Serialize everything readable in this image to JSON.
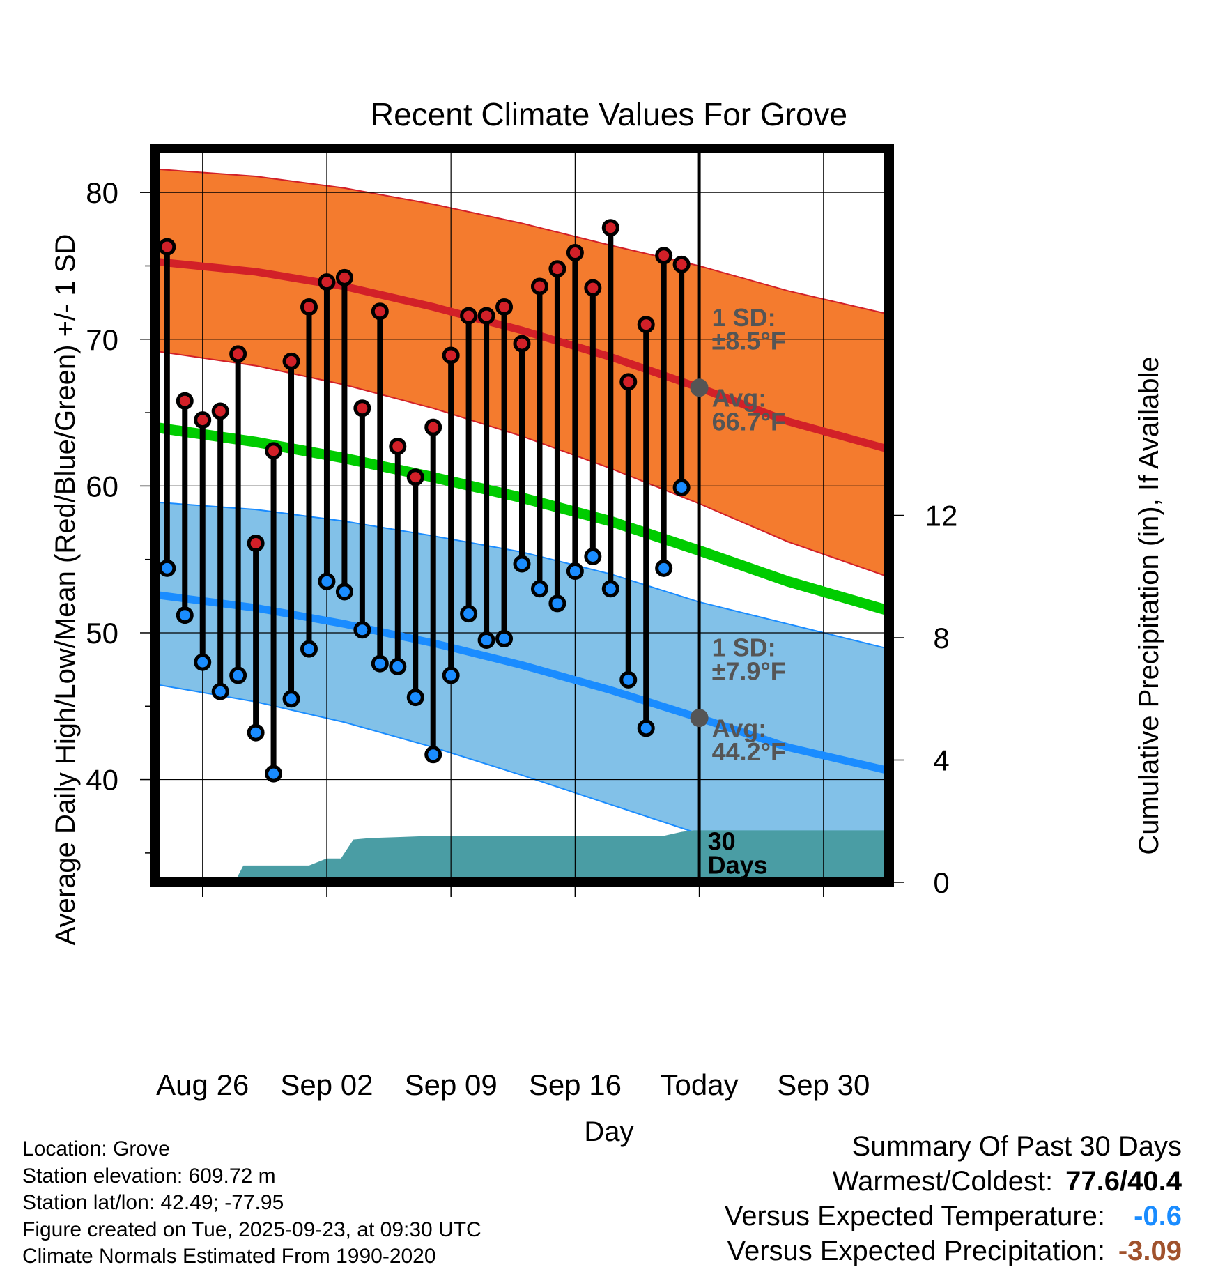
{
  "chart_data": {
    "type": "line",
    "title": "Recent Climate Values For Grove",
    "xlabel": "Day",
    "ylabel": "Average Daily High/Low/Mean (Red/Blue/Green) +/- 1 SD",
    "y2label": "Cumulative Precipitation (in), If Available",
    "ylim": [
      33,
      83
    ],
    "y_ticks": [
      40,
      50,
      60,
      70,
      80
    ],
    "y2lim": [
      0,
      24
    ],
    "y2_ticks": [
      0,
      4,
      8,
      12
    ],
    "x_range_days": [
      -30.7,
      10.7
    ],
    "x_ticks": [
      {
        "day": -28,
        "label": "Aug 26"
      },
      {
        "day": -21,
        "label": "Sep 02"
      },
      {
        "day": -14,
        "label": "Sep 09"
      },
      {
        "day": -7,
        "label": "Sep 16"
      },
      {
        "day": 0,
        "label": "Today"
      },
      {
        "day": 7,
        "label": "Sep 30"
      }
    ],
    "normals": {
      "days": [
        -30.7,
        -25,
        -20,
        -15,
        -10,
        -5,
        0,
        5,
        10.7
      ],
      "high_avg": [
        75.3,
        74.6,
        73.6,
        72.2,
        70.6,
        68.8,
        66.7,
        64.4,
        62.5
      ],
      "high_upper": [
        81.6,
        81.1,
        80.3,
        79.2,
        77.9,
        76.4,
        75.0,
        73.3,
        71.7
      ],
      "high_lower": [
        69.2,
        68.2,
        66.9,
        65.3,
        63.4,
        61.2,
        58.8,
        56.2,
        53.8
      ],
      "mean_avg": [
        64.0,
        63.0,
        61.9,
        60.6,
        59.2,
        57.6,
        55.6,
        53.5,
        51.5
      ],
      "low_avg": [
        52.6,
        51.7,
        50.6,
        49.3,
        47.8,
        46.1,
        44.2,
        42.2,
        40.6
      ],
      "low_upper": [
        58.9,
        58.4,
        57.6,
        56.6,
        55.5,
        54.0,
        52.1,
        50.6,
        48.9
      ],
      "low_lower": [
        46.5,
        45.3,
        43.9,
        42.2,
        40.3,
        38.3,
        36.3,
        34.5,
        33.2
      ]
    },
    "observed": {
      "days": [
        -30,
        -29,
        -28,
        -27,
        -26,
        -25,
        -24,
        -23,
        -22,
        -21,
        -20,
        -19,
        -18,
        -17,
        -16,
        -15,
        -14,
        -13,
        -12,
        -11,
        -10,
        -9,
        -8,
        -7,
        -6,
        -5,
        -4,
        -3,
        -2,
        -1
      ],
      "highs": [
        76.3,
        65.8,
        64.5,
        65.1,
        69.0,
        56.1,
        62.4,
        68.5,
        72.2,
        73.9,
        74.2,
        65.3,
        71.9,
        62.7,
        60.6,
        64.0,
        68.9,
        71.6,
        71.6,
        72.2,
        69.7,
        73.6,
        74.8,
        75.9,
        73.5,
        77.6,
        67.1,
        71.0,
        75.7,
        75.1
      ],
      "lows": [
        54.4,
        51.2,
        48.0,
        46.0,
        47.1,
        43.2,
        40.4,
        45.5,
        48.9,
        53.5,
        52.8,
        50.2,
        47.9,
        47.7,
        45.6,
        41.7,
        47.1,
        51.3,
        49.5,
        49.6,
        54.7,
        53.0,
        52.0,
        54.2,
        55.2,
        53.0,
        46.8,
        43.5,
        54.4,
        59.9
      ]
    },
    "precip_cumulative": {
      "days": [
        -30.7,
        -26.2,
        -25.7,
        -24,
        -23,
        -22,
        -21,
        -20.2,
        -19.5,
        -18.5,
        -17,
        -15,
        -10,
        -5,
        -2,
        -1,
        -0.3,
        10.7
      ],
      "values": [
        0,
        0,
        0.55,
        0.55,
        0.55,
        0.55,
        0.78,
        0.78,
        1.4,
        1.45,
        1.48,
        1.52,
        1.52,
        1.52,
        1.52,
        1.65,
        1.7,
        1.7
      ]
    },
    "annotations": {
      "high_sd": "1 SD:",
      "high_sd_val": "±8.5°F",
      "high_avg_label": "Avg:",
      "high_avg_val": "66.7°F",
      "low_sd": "1 SD:",
      "low_sd_val": "±7.9°F",
      "low_avg_label": "Avg:",
      "low_avg_val": "44.2°F",
      "days_num": "30",
      "days_word": "Days"
    },
    "colors": {
      "high_band": "#f47b2e",
      "high_line": "#d22028",
      "low_band": "#82c1e8",
      "low_line": "#1a8cff",
      "mean_line": "#00cc00",
      "precip": "#4a9da4",
      "marker_high": "#d22028",
      "marker_low": "#1a8cff",
      "today_marker": "#555555"
    }
  },
  "info": {
    "location": "Location: Grove",
    "elevation": "Station elevation: 609.72 m",
    "latlon": "Station lat/lon: 42.49; -77.95",
    "created": "Figure created on Tue, 2025-09-23, at 09:30 UTC",
    "normals": "Climate Normals Estimated From 1990-2020"
  },
  "summary": {
    "heading": "Summary Of Past 30 Days",
    "warm_cold_label": "Warmest/Coldest:",
    "warm_cold_value": "77.6/40.4",
    "temp_label": "Versus Expected Temperature:",
    "temp_value": "-0.6",
    "temp_color": "#1a8cff",
    "precip_label": "Versus Expected Precipitation:",
    "precip_value": "-3.09",
    "precip_color": "#a0522d"
  }
}
